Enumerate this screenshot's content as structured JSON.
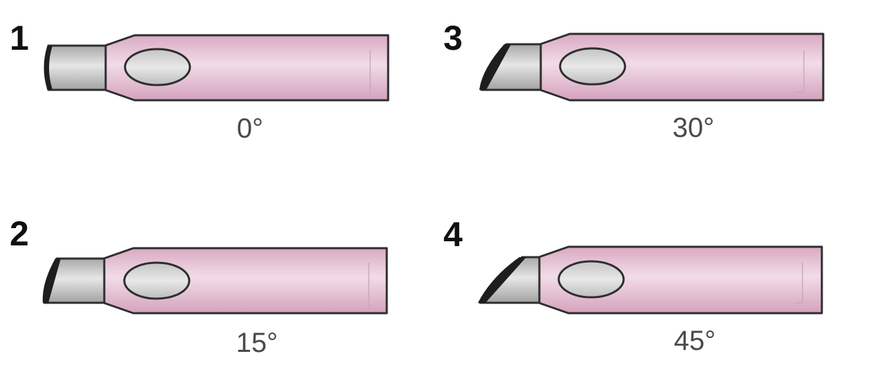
{
  "figure": {
    "panels": [
      {
        "number": "1",
        "angle_label": "0°",
        "angle_deg": 0
      },
      {
        "number": "2",
        "angle_label": "15°",
        "angle_deg": 15
      },
      {
        "number": "3",
        "angle_label": "30°",
        "angle_deg": 30
      },
      {
        "number": "4",
        "angle_label": "45°",
        "angle_deg": 45
      }
    ]
  },
  "colors": {
    "sheath": "#e8c4d8",
    "lens": "#c8c8c8",
    "outline": "#2e2e2e"
  }
}
